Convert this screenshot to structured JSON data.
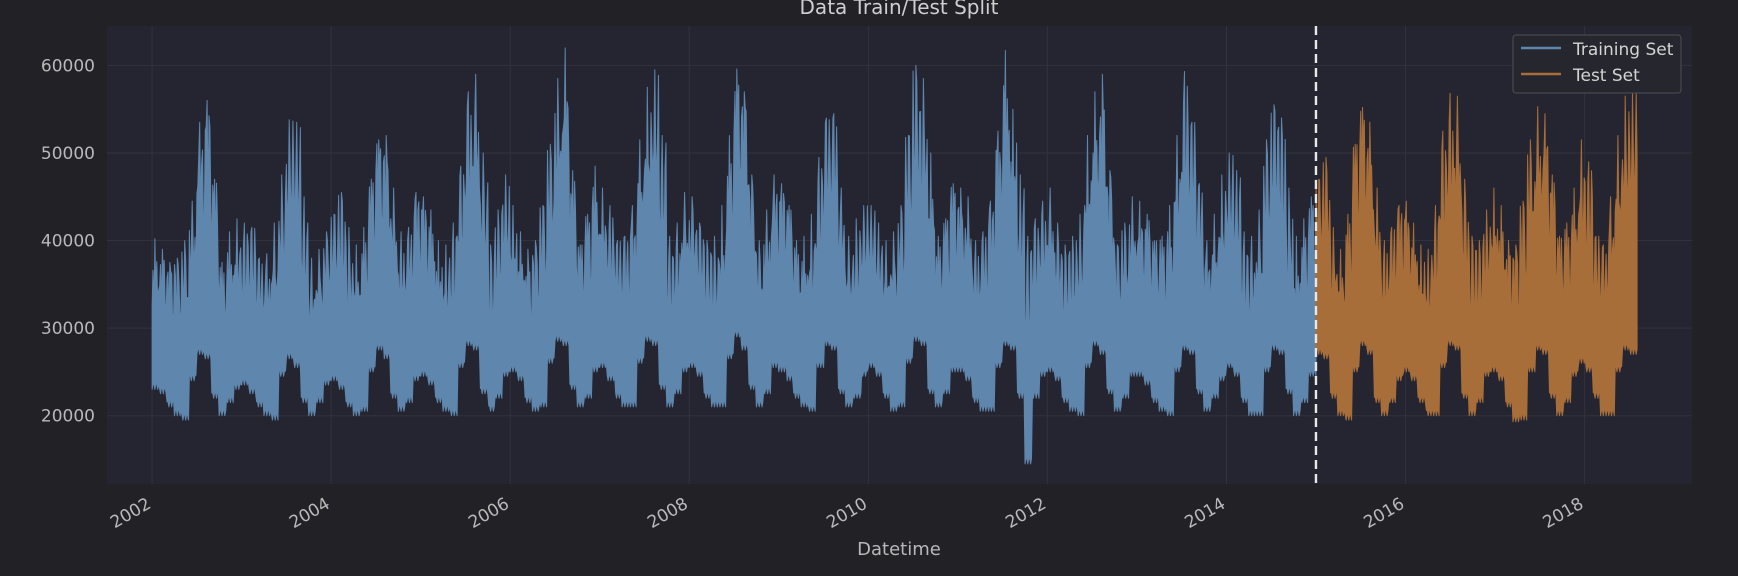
{
  "chart_data": {
    "type": "line",
    "title": "Data Train/Test Split",
    "xlabel": "Datetime",
    "ylabel": "",
    "x_ticks": [
      "2002",
      "2004",
      "2006",
      "2008",
      "2010",
      "2012",
      "2014",
      "2016",
      "2018"
    ],
    "y_ticks": [
      20000,
      30000,
      40000,
      50000,
      60000
    ],
    "xlim": [
      "2001-07-01",
      "2019-03-15"
    ],
    "ylim": [
      12200,
      64500
    ],
    "grid": true,
    "legend_position": "top-right",
    "split_date": "2015-01-01",
    "series": [
      {
        "name": "Training Set",
        "color": "#5f86ad",
        "start": "2002-01-01",
        "end": "2015-01-01",
        "approx_min": 14500,
        "approx_max": 62000,
        "monthly_peaks": [
          40200,
          39000,
          37500,
          38000,
          40000,
          44500,
          53500,
          56000,
          47000,
          37500,
          41000,
          42500,
          42000,
          41500,
          38000,
          38500,
          42000,
          47500,
          53800,
          53500,
          45000,
          38000,
          39000,
          41000,
          43000,
          45500,
          41500,
          39500,
          41500,
          47000,
          51500,
          52000,
          46000,
          41000,
          41500,
          45500,
          45000,
          43500,
          40000,
          39500,
          42000,
          48500,
          57000,
          59000,
          50000,
          39500,
          43500,
          47500,
          44000,
          41000,
          39000,
          40000,
          44000,
          51000,
          58500,
          62000,
          48000,
          39500,
          43000,
          48500,
          46000,
          44000,
          40000,
          40500,
          44000,
          51500,
          57500,
          59500,
          52000,
          40500,
          42000,
          45500,
          45000,
          42000,
          40000,
          40500,
          44000,
          52000,
          59600,
          57000,
          47500,
          40000,
          43500,
          47500,
          46500,
          44000,
          40000,
          40500,
          43000,
          49500,
          54000,
          54500,
          46000,
          40500,
          42500,
          44000,
          44000,
          42000,
          40000,
          41000,
          44000,
          52000,
          60000,
          58500,
          50000,
          40500,
          42500,
          46500,
          46000,
          45000,
          40000,
          41000,
          44500,
          52500,
          61700,
          55000,
          47500,
          40500,
          42500,
          44500,
          46000,
          42000,
          39500,
          40500,
          43000,
          52000,
          57000,
          59000,
          48000,
          39500,
          42000,
          45000,
          44500,
          43000,
          40000,
          40500,
          44000,
          52000,
          59300,
          53500,
          46500,
          40000,
          43000,
          47500,
          50000,
          48000,
          41000,
          40500,
          43500,
          51500,
          55500,
          54000,
          46000,
          40500,
          42500,
          45000
        ],
        "monthly_troughs": [
          23000,
          22500,
          21000,
          20000,
          19500,
          24000,
          27000,
          26500,
          22000,
          20000,
          21500,
          23000,
          23500,
          22500,
          21000,
          20000,
          19500,
          24500,
          26500,
          25500,
          21500,
          20000,
          21500,
          23500,
          24000,
          23000,
          21000,
          20000,
          20500,
          25000,
          27500,
          26500,
          22000,
          20500,
          21500,
          24000,
          24500,
          23500,
          21500,
          20500,
          20000,
          25500,
          28000,
          27500,
          22500,
          20500,
          22000,
          24500,
          25000,
          24000,
          21500,
          20500,
          21000,
          26000,
          28500,
          28000,
          23000,
          21000,
          22000,
          25000,
          25500,
          24000,
          22000,
          21000,
          21000,
          26000,
          28500,
          28000,
          23000,
          21000,
          22500,
          25000,
          25500,
          24500,
          22000,
          21000,
          21000,
          26500,
          29000,
          27500,
          23000,
          21000,
          22500,
          25500,
          25000,
          24000,
          22000,
          21000,
          20500,
          25500,
          28000,
          27500,
          22500,
          21000,
          22000,
          24500,
          25500,
          24500,
          22000,
          20500,
          21000,
          26000,
          28500,
          28000,
          22500,
          21000,
          22500,
          25000,
          25000,
          24000,
          21500,
          20500,
          20500,
          25500,
          28000,
          27500,
          22000,
          14500,
          22000,
          24500,
          25000,
          24000,
          21500,
          20500,
          20000,
          25500,
          28000,
          27000,
          22500,
          20500,
          22000,
          24500,
          24500,
          23500,
          21500,
          20500,
          20000,
          25000,
          27500,
          27000,
          22500,
          20500,
          22000,
          24000,
          25500,
          24500,
          21500,
          20000,
          20000,
          25000,
          27500,
          27000,
          22500,
          20000,
          21500,
          24500
        ]
      },
      {
        "name": "Test Set",
        "color": "#a86e3a",
        "start": "2015-01-01",
        "end": "2018-08-03",
        "approx_min": 19300,
        "approx_max": 57000,
        "monthly_peaks": [
          47000,
          49500,
          41500,
          39000,
          43000,
          51000,
          55200,
          53500,
          46000,
          40000,
          41500,
          44000,
          44500,
          42000,
          39500,
          39000,
          44000,
          52500,
          56800,
          56500,
          47000,
          40500,
          40000,
          43500,
          46000,
          44000,
          40000,
          39500,
          44500,
          51500,
          55300,
          54500,
          47500,
          40500,
          42000,
          46000,
          51500,
          49000,
          40500,
          39500,
          45000,
          52000,
          56500,
          56900
        ],
        "monthly_troughs": [
          27000,
          26500,
          22000,
          20000,
          19500,
          25000,
          28000,
          27000,
          21500,
          20000,
          21500,
          24000,
          25000,
          24000,
          21500,
          20000,
          20000,
          25500,
          28000,
          27500,
          22000,
          20000,
          21500,
          24500,
          25000,
          24000,
          21000,
          19300,
          19500,
          25000,
          27500,
          27000,
          22000,
          20000,
          21500,
          24500,
          26000,
          25000,
          22000,
          20000,
          20000,
          25000,
          27500,
          27000
        ]
      }
    ]
  }
}
